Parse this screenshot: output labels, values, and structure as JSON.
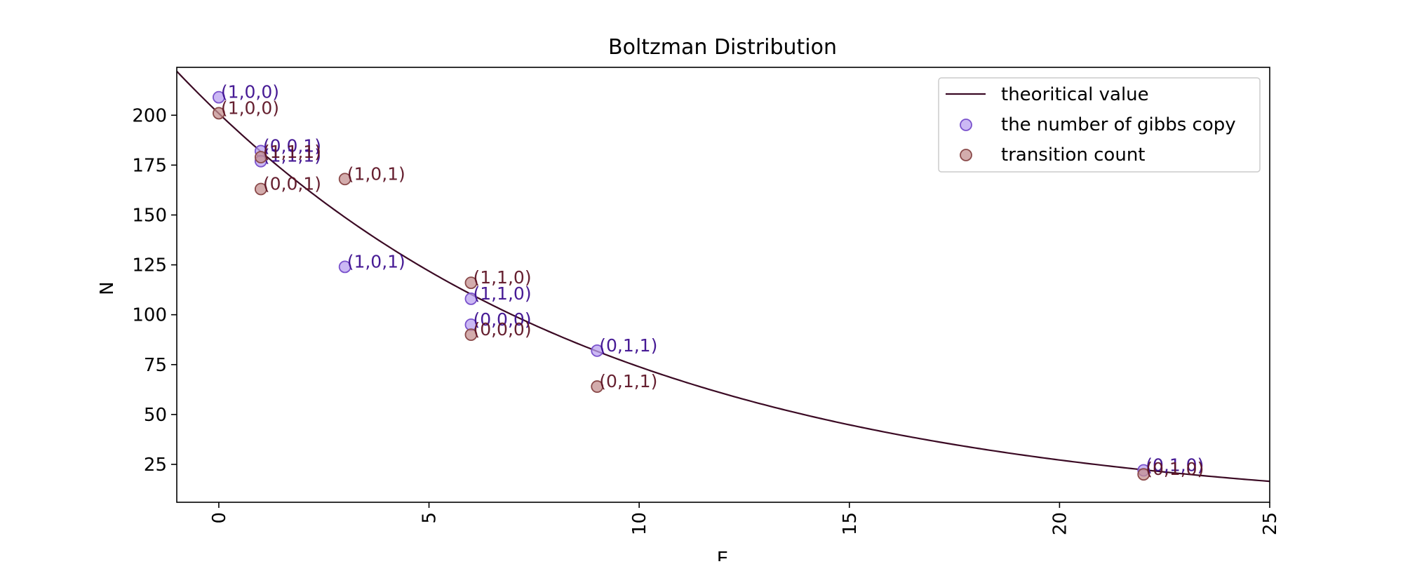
{
  "chart_data": {
    "type": "scatter",
    "title": "Boltzman Distribution",
    "xlabel": "E",
    "ylabel": "N",
    "xlim": [
      -1,
      25
    ],
    "ylim": [
      6,
      224
    ],
    "xticks": [
      "0",
      "5",
      "10",
      "15",
      "20",
      "25"
    ],
    "xtick_values": [
      0,
      5,
      10,
      15,
      20,
      25
    ],
    "yticks": [
      "25",
      "50",
      "75",
      "100",
      "125",
      "150",
      "175",
      "200"
    ],
    "ytick_values": [
      25,
      50,
      75,
      100,
      125,
      150,
      175,
      200
    ],
    "x_tick_rotation": "vertical",
    "grid": false,
    "legend_position": "top-right",
    "legend": [
      "theoritical value",
      "the number of gibbs copy",
      "transition count"
    ],
    "curve": {
      "name": "theoritical value",
      "formula": "N = 200.9 * exp(-0.1 * E)",
      "amplitude": 200.9,
      "decay": 0.1,
      "color": "#3b0a24"
    },
    "series": [
      {
        "name": "the number of gibbs copy",
        "fill": "#b9a0f0",
        "stroke": "#7a52cc",
        "label_color": "#3d0f8f",
        "points": [
          {
            "x": 0,
            "y": 209,
            "label": "(1,0,0)"
          },
          {
            "x": 1,
            "y": 182,
            "label": "(0,0,1)"
          },
          {
            "x": 1,
            "y": 177,
            "label": "(1,1,1)"
          },
          {
            "x": 3,
            "y": 124,
            "label": "(1,0,1)"
          },
          {
            "x": 6,
            "y": 108,
            "label": "(1,1,0)"
          },
          {
            "x": 6,
            "y": 95,
            "label": "(0,0,0)"
          },
          {
            "x": 9,
            "y": 82,
            "label": "(0,1,1)"
          },
          {
            "x": 22,
            "y": 22,
            "label": "(0,1,0)"
          }
        ]
      },
      {
        "name": "transition count",
        "fill": "#c49090",
        "stroke": "#8a4a4a",
        "label_color": "#5e1425",
        "points": [
          {
            "x": 0,
            "y": 201,
            "label": "(1,0,0)"
          },
          {
            "x": 1,
            "y": 179,
            "label": "(1,1,1)"
          },
          {
            "x": 1,
            "y": 163,
            "label": "(0,0,1)"
          },
          {
            "x": 3,
            "y": 168,
            "label": "(1,0,1)"
          },
          {
            "x": 6,
            "y": 116,
            "label": "(1,1,0)"
          },
          {
            "x": 6,
            "y": 90,
            "label": "(0,0,0)"
          },
          {
            "x": 9,
            "y": 64,
            "label": "(0,1,1)"
          },
          {
            "x": 22,
            "y": 20,
            "label": "(0,1,0)"
          }
        ]
      }
    ]
  }
}
